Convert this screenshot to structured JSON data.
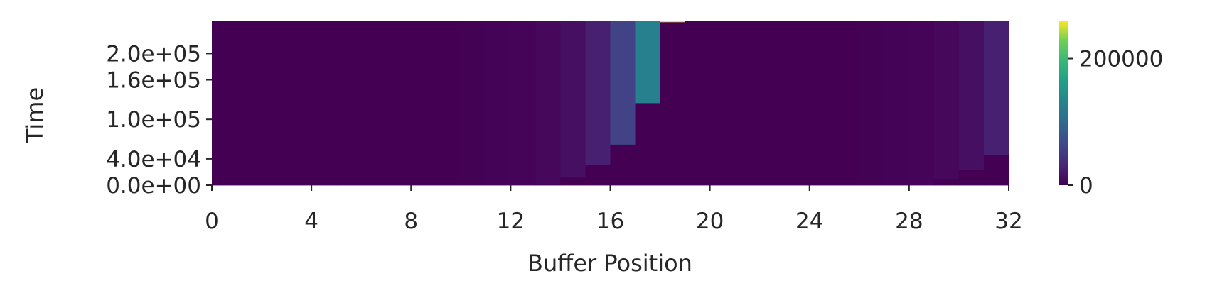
{
  "chart_data": {
    "type": "heatmap",
    "xlabel": "Buffer Position",
    "ylabel": "Time",
    "x_range": [
      0,
      32
    ],
    "y_range": [
      0,
      250000
    ],
    "x_ticks": [
      0,
      4,
      8,
      12,
      16,
      20,
      24,
      28,
      32
    ],
    "y_ticks": [
      {
        "value": 0,
        "label": "0.0e+00"
      },
      {
        "value": 40000,
        "label": "4.0e+04"
      },
      {
        "value": 100000,
        "label": "1.0e+05"
      },
      {
        "value": 160000,
        "label": "1.6e+05"
      },
      {
        "value": 200000,
        "label": "2.0e+05"
      }
    ],
    "colorbar": {
      "min": 0,
      "max": 260000,
      "colormap": "viridis",
      "ticks": [
        {
          "value": 0,
          "label": "0"
        },
        {
          "value": 200000,
          "label": "200000"
        }
      ]
    },
    "columns": [
      {
        "position": 0,
        "segments": [
          {
            "from": 0,
            "to": 250000,
            "value": 0
          }
        ]
      },
      {
        "position": 1,
        "segments": [
          {
            "from": 0,
            "to": 250000,
            "value": 0
          }
        ]
      },
      {
        "position": 2,
        "segments": [
          {
            "from": 0,
            "to": 250000,
            "value": 0
          }
        ]
      },
      {
        "position": 3,
        "segments": [
          {
            "from": 0,
            "to": 250000,
            "value": 0
          }
        ]
      },
      {
        "position": 4,
        "segments": [
          {
            "from": 0,
            "to": 250000,
            "value": 0
          }
        ]
      },
      {
        "position": 5,
        "segments": [
          {
            "from": 0,
            "to": 250000,
            "value": 0
          }
        ]
      },
      {
        "position": 6,
        "segments": [
          {
            "from": 0,
            "to": 250000,
            "value": 0
          }
        ]
      },
      {
        "position": 7,
        "segments": [
          {
            "from": 0,
            "to": 250000,
            "value": 0
          }
        ]
      },
      {
        "position": 8,
        "segments": [
          {
            "from": 0,
            "to": 250000,
            "value": 0
          }
        ]
      },
      {
        "position": 9,
        "segments": [
          {
            "from": 0,
            "to": 250000,
            "value": 0
          }
        ]
      },
      {
        "position": 10,
        "segments": [
          {
            "from": 0,
            "to": 250000,
            "value": 1000
          }
        ]
      },
      {
        "position": 11,
        "segments": [
          {
            "from": 0,
            "to": 250000,
            "value": 2000
          }
        ]
      },
      {
        "position": 12,
        "segments": [
          {
            "from": 0,
            "to": 250000,
            "value": 4000
          }
        ]
      },
      {
        "position": 13,
        "segments": [
          {
            "from": 0,
            "to": 2000,
            "value": 0
          },
          {
            "from": 2000,
            "to": 250000,
            "value": 8000
          }
        ]
      },
      {
        "position": 14,
        "segments": [
          {
            "from": 0,
            "to": 12000,
            "value": 0
          },
          {
            "from": 12000,
            "to": 250000,
            "value": 16000
          }
        ]
      },
      {
        "position": 15,
        "segments": [
          {
            "from": 0,
            "to": 31000,
            "value": 0
          },
          {
            "from": 31000,
            "to": 250000,
            "value": 32000
          }
        ]
      },
      {
        "position": 16,
        "segments": [
          {
            "from": 0,
            "to": 62000,
            "value": 0
          },
          {
            "from": 62000,
            "to": 250000,
            "value": 64000
          }
        ]
      },
      {
        "position": 17,
        "segments": [
          {
            "from": 0,
            "to": 125000,
            "value": 0
          },
          {
            "from": 125000,
            "to": 250000,
            "value": 128000
          }
        ]
      },
      {
        "position": 18,
        "segments": [
          {
            "from": 0,
            "to": 248000,
            "value": 0
          },
          {
            "from": 248000,
            "to": 250000,
            "value": 256000
          }
        ]
      },
      {
        "position": 19,
        "segments": [
          {
            "from": 0,
            "to": 250000,
            "value": 0
          }
        ]
      },
      {
        "position": 20,
        "segments": [
          {
            "from": 0,
            "to": 250000,
            "value": 0
          }
        ]
      },
      {
        "position": 21,
        "segments": [
          {
            "from": 0,
            "to": 250000,
            "value": 0
          }
        ]
      },
      {
        "position": 22,
        "segments": [
          {
            "from": 0,
            "to": 250000,
            "value": 0
          }
        ]
      },
      {
        "position": 23,
        "segments": [
          {
            "from": 0,
            "to": 250000,
            "value": 0
          }
        ]
      },
      {
        "position": 24,
        "segments": [
          {
            "from": 0,
            "to": 250000,
            "value": 0
          }
        ]
      },
      {
        "position": 25,
        "segments": [
          {
            "from": 0,
            "to": 250000,
            "value": 0
          }
        ]
      },
      {
        "position": 26,
        "segments": [
          {
            "from": 0,
            "to": 250000,
            "value": 1000
          }
        ]
      },
      {
        "position": 27,
        "segments": [
          {
            "from": 0,
            "to": 250000,
            "value": 2000
          }
        ]
      },
      {
        "position": 28,
        "segments": [
          {
            "from": 0,
            "to": 250000,
            "value": 4000
          }
        ]
      },
      {
        "position": 29,
        "segments": [
          {
            "from": 0,
            "to": 10000,
            "value": 0
          },
          {
            "from": 10000,
            "to": 250000,
            "value": 8000
          }
        ]
      },
      {
        "position": 30,
        "segments": [
          {
            "from": 0,
            "to": 23000,
            "value": 0
          },
          {
            "from": 23000,
            "to": 250000,
            "value": 16000
          }
        ]
      },
      {
        "position": 31,
        "segments": [
          {
            "from": 0,
            "to": 46000,
            "value": 0
          },
          {
            "from": 46000,
            "to": 250000,
            "value": 32000
          }
        ]
      }
    ],
    "legend": "none",
    "grid": false
  }
}
